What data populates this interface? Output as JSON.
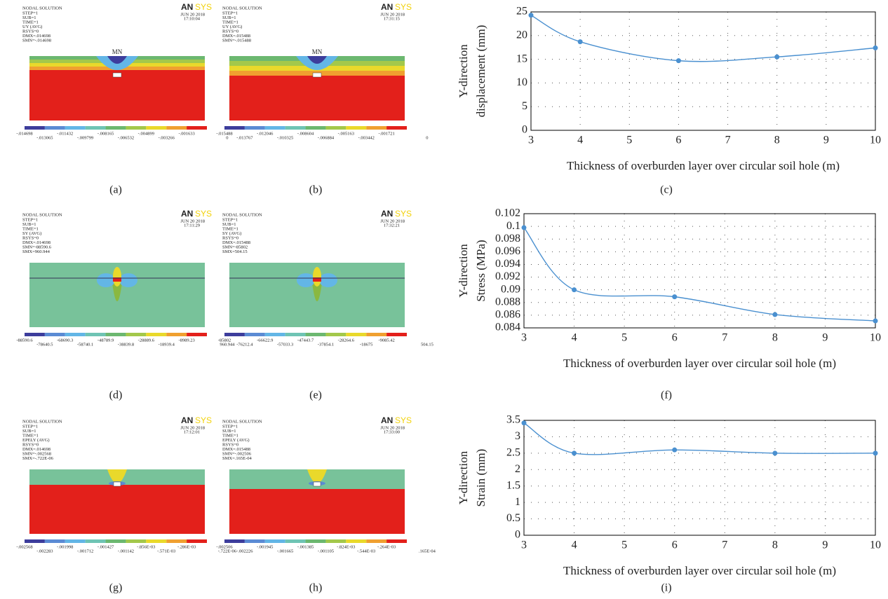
{
  "panels": [
    {
      "header": "NODAL SOLUTION",
      "info": [
        "STEP=1",
        "SUB=1",
        "TIME=1",
        "UY    (AVG)",
        "RSYS=0",
        "DMX=.014698",
        "SMN=-.014698"
      ],
      "logo": [
        "AN",
        "SYS"
      ],
      "date": "JUN 20 2018",
      "time": "17:10:04",
      "marker": "MN",
      "legend_top": [
        "-.014698",
        "-.011432",
        "-.008165",
        "-.004899",
        "-.001633"
      ],
      "legend_bottom": [
        "-.013065",
        "-.009799",
        "-.006532",
        "-.003266",
        "0"
      ]
    },
    {
      "header": "NODAL SOLUTION",
      "info": [
        "STEP=1",
        "SUB=1",
        "TIME=1",
        "UY    (AVG)",
        "RSYS=0",
        "DMX=.015488",
        "SMN=-.015488"
      ],
      "logo": [
        "AN",
        "SYS"
      ],
      "date": "JUN 20 2018",
      "time": "17:31:15",
      "marker": "MN",
      "legend_top": [
        "-.015488",
        "-.012046",
        "-.008604",
        "-.005163",
        "-.001721"
      ],
      "legend_bottom": [
        "-.013767",
        "-.010325",
        "-.006884",
        "-.003442",
        "0"
      ]
    },
    {
      "header": "NODAL SOLUTION",
      "info": [
        "STEP=1",
        "SUB=1",
        "TIME=1",
        "SY    (AVG)",
        "RSYS=0",
        "DMX=.014698",
        "SMN=-88590.6",
        "SMX=960.944"
      ],
      "logo": [
        "AN",
        "SYS"
      ],
      "date": "JUN 20 2018",
      "time": "17:11:29",
      "legend_top": [
        "-88590.6",
        "-68690.3",
        "-48789.9",
        "-28889.6",
        "-8989.23"
      ],
      "legend_bottom": [
        "-78640.5",
        "-58740.1",
        "-38839.8",
        "-18939.4",
        "960.944"
      ]
    },
    {
      "header": "NODAL SOLUTION",
      "info": [
        "STEP=1",
        "SUB=1",
        "TIME=1",
        "SY    (AVG)",
        "RSYS=0",
        "DMX=.015488",
        "SMN=-85802",
        "SMX=504.15"
      ],
      "logo": [
        "AN",
        "SYS"
      ],
      "date": "JUN 20 2018",
      "time": "17:32:21",
      "legend_top": [
        "-85802",
        "-66622.9",
        "-47443.7",
        "-28264.6",
        "-9085.42"
      ],
      "legend_bottom": [
        "-76212.4",
        "-57033.3",
        "-37854.1",
        "-18675",
        "504.15"
      ]
    },
    {
      "header": "NODAL SOLUTION",
      "info": [
        "STEP=1",
        "SUB=1",
        "TIME=1",
        "EPELY (AVG)",
        "RSYS=0",
        "DMX=.014698",
        "SMN=-.002568",
        "SMX=-.722E-06"
      ],
      "logo": [
        "AN",
        "SYS"
      ],
      "date": "JUN 20 2018",
      "time": "17:12:01",
      "legend_top": [
        "-.002568",
        "-.001998",
        "-.001427",
        "-.856E-03",
        "-.286E-03"
      ],
      "legend_bottom": [
        "-.002283",
        "-.001712",
        "-.001142",
        "-.571E-03",
        "-.722E-06"
      ]
    },
    {
      "header": "NODAL SOLUTION",
      "info": [
        "STEP=1",
        "SUB=1",
        "TIME=1",
        "EPELY (AVG)",
        "RSYS=0",
        "DMX=.015488",
        "SMN=-.002506",
        "SMX=.165E-04"
      ],
      "logo": [
        "AN",
        "SYS"
      ],
      "date": "JUN 20 2018",
      "time": "17:33:00",
      "legend_top": [
        "-.002506",
        "-.001945",
        "-.001385",
        "-.824E-03",
        "-.264E-03"
      ],
      "legend_bottom": [
        "-.002226",
        "-.001665",
        "-.001105",
        "-.544E-03",
        ".165E-04"
      ]
    }
  ],
  "chart_data": [
    {
      "type": "line",
      "x_label": "Thickness of overburden layer over circular soil hole (m)",
      "y_label": [
        "Y-direction",
        "displacement (mm)"
      ],
      "x": [
        3,
        4,
        6,
        8,
        10
      ],
      "series": [
        {
          "color": "#4a90d0",
          "values": [
            24.3,
            18.7,
            14.7,
            15.5,
            17.4
          ]
        }
      ],
      "xlim": [
        3,
        10
      ],
      "xticks": [
        3,
        4,
        5,
        6,
        7,
        8,
        9,
        10
      ],
      "ylim": [
        0,
        25
      ],
      "yticks": [
        0,
        5,
        10,
        15,
        20,
        25
      ],
      "grid": true
    },
    {
      "type": "line",
      "x_label": "Thickness of overburden layer over circular soil hole (m)",
      "y_label": [
        "Y-direction",
        "Stress (MPa)"
      ],
      "x": [
        3,
        4,
        6,
        8,
        10
      ],
      "series": [
        {
          "color": "#4a90d0",
          "values": [
            0.0998,
            0.09,
            0.0889,
            0.0861,
            0.0851
          ]
        }
      ],
      "xlim": [
        3,
        10
      ],
      "xticks": [
        3,
        4,
        5,
        6,
        7,
        8,
        9,
        10
      ],
      "ylim": [
        0.084,
        0.102
      ],
      "yticks": [
        0.084,
        0.086,
        0.088,
        0.09,
        0.092,
        0.094,
        0.096,
        0.098,
        0.1,
        0.102
      ],
      "grid": true
    },
    {
      "type": "line",
      "x_label": "Thickness of overburden layer over circular soil hole (m)",
      "y_label": [
        "Y-direction",
        "Strain (mm)"
      ],
      "x": [
        3,
        4,
        6,
        8,
        10
      ],
      "series": [
        {
          "color": "#4a90d0",
          "values": [
            3.42,
            2.5,
            2.6,
            2.5,
            2.5
          ]
        }
      ],
      "xlim": [
        3,
        10
      ],
      "xticks": [
        3,
        4,
        5,
        6,
        7,
        8,
        9,
        10
      ],
      "ylim": [
        0,
        3.5
      ],
      "yticks": [
        0,
        0.5,
        1,
        1.5,
        2,
        2.5,
        3,
        3.5
      ],
      "grid": true
    }
  ],
  "captions": [
    "(a)",
    "(b)",
    "(c)",
    "(d)",
    "(e)",
    "(f)",
    "(g)",
    "(h)",
    "(i)"
  ]
}
